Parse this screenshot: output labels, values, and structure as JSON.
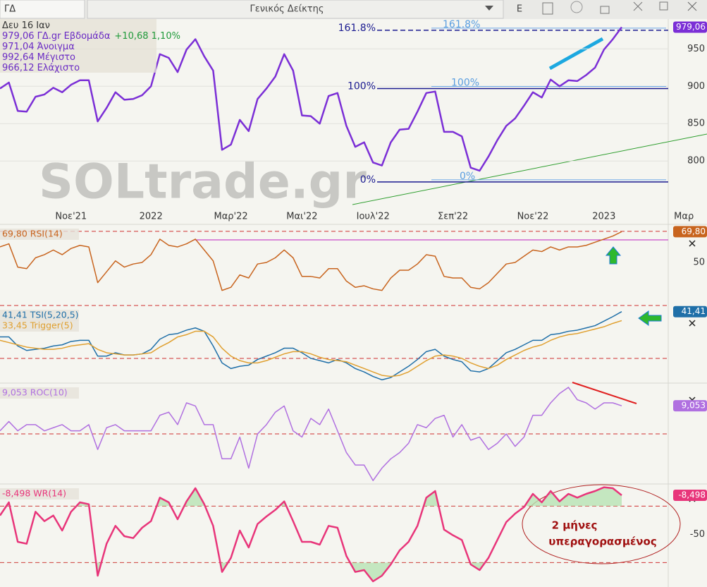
{
  "toolbar": {
    "symbol": "ΓΔ",
    "name": "Γενικός Δείκτης",
    "button": "E"
  },
  "chart_data": [
    {
      "type": "line",
      "info": [
        [
          {
            "text": "Δευ 16 Ιαν",
            "color": "#333333"
          }
        ],
        [
          {
            "text": "979,06 ΓΔ.gr Εβδομάδα",
            "color": "#6a2bc4"
          },
          {
            "text": "+10,68 1,10%",
            "color": "#1f9a3a"
          }
        ],
        [
          {
            "text": "971,04 Άνοιγμα",
            "color": "#6a2bc4"
          }
        ],
        [
          {
            "text": "992,64 Μέγιστο",
            "color": "#6a2bc4"
          }
        ],
        [
          {
            "text": "966,12 Ελάχιστο",
            "color": "#6a2bc4"
          }
        ]
      ],
      "watermark": "SOLtrade.gr",
      "categories": [
        null,
        null,
        null,
        null,
        null,
        null,
        null,
        null,
        "Νοε'21",
        null,
        null,
        null,
        null,
        null,
        null,
        null,
        null,
        "2022",
        null,
        null,
        null,
        null,
        null,
        null,
        null,
        null,
        "Μαρ'22",
        null,
        null,
        null,
        null,
        null,
        null,
        null,
        "Μαι'22",
        null,
        null,
        null,
        null,
        null,
        null,
        null,
        "Ιουλ'22",
        null,
        null,
        null,
        null,
        null,
        null,
        null,
        null,
        "Σεπ'22",
        null,
        null,
        null,
        null,
        null,
        null,
        null,
        null,
        "Νοε'22",
        null,
        null,
        null,
        null,
        null,
        null,
        null,
        "2023",
        null,
        null,
        null,
        null,
        null,
        null,
        null,
        null,
        "Μαρ"
      ],
      "values": [
        897,
        905,
        867,
        866,
        886,
        889,
        898,
        892,
        902,
        908,
        908,
        853,
        871,
        892,
        882,
        883,
        888,
        900,
        943,
        938,
        919,
        949,
        963,
        940,
        921,
        815,
        822,
        855,
        840,
        883,
        897,
        913,
        943,
        921,
        861,
        860,
        850,
        887,
        891,
        847,
        819,
        825,
        798,
        794,
        825,
        842,
        843,
        866,
        891,
        893,
        839,
        839,
        833,
        791,
        787,
        806,
        828,
        847,
        857,
        874,
        892,
        885,
        909,
        900,
        908,
        907,
        915,
        925,
        949,
        963,
        979.06,
        null,
        null,
        null,
        null,
        null,
        null,
        null
      ],
      "value_label": "979,06",
      "color": "#7b2fd6",
      "levels": [
        {
          "value": 975,
          "label": "161.8%"
        },
        {
          "value": 897,
          "label": "100%"
        },
        {
          "value": 772,
          "label": "0%"
        }
      ],
      "ylim": [
        736,
        989
      ],
      "yticks": [
        800,
        850,
        900,
        950
      ],
      "grid": true
    },
    {
      "type": "line",
      "series": [
        {
          "name": "69,80 RSI(14)",
          "color": "#c8641e",
          "value_label": "69,80",
          "values": [
            60,
            62,
            47,
            46,
            53,
            55,
            58,
            55,
            59,
            61,
            60,
            37,
            44,
            51,
            47,
            49,
            50,
            55,
            65,
            61,
            60,
            62,
            65,
            58,
            51,
            32,
            34,
            42,
            40,
            49,
            50,
            53,
            58,
            53,
            41,
            41,
            40,
            46,
            46,
            38,
            34,
            35,
            33,
            32,
            40,
            45,
            45,
            49,
            55,
            54,
            41,
            40,
            40,
            34,
            33,
            37,
            43,
            49,
            50,
            54,
            58,
            57,
            60,
            58,
            60,
            60,
            61,
            63,
            65,
            67,
            69.8
          ]
        }
      ],
      "ylim": [
        22.3,
        73.6
      ],
      "yticks": [
        50
      ],
      "hlines": [
        70
      ]
    },
    {
      "type": "line",
      "series": [
        {
          "name": "41,41 TSI(5,20,5)",
          "color": "#1f6fa8",
          "value_label": "41,41",
          "values": [
            19,
            19,
            11,
            7,
            8,
            9,
            11,
            12,
            15,
            16,
            16,
            2,
            2,
            5,
            3,
            3,
            4,
            8,
            17,
            21,
            22,
            25,
            27,
            24,
            11,
            -4,
            -9,
            -7,
            -6,
            -1,
            2,
            5,
            9,
            9,
            5,
            0,
            -2,
            -4,
            -1,
            -4,
            -9,
            -12,
            -16,
            -19,
            -17,
            -12,
            -7,
            -1,
            6,
            8,
            2,
            -1,
            -3,
            -11,
            -12,
            -9,
            -2,
            5,
            8,
            12,
            16,
            16,
            21,
            22,
            24,
            25,
            27,
            29,
            33,
            37,
            41.41
          ]
        },
        {
          "name": "33,45 Trigger(5)",
          "color": "#e0a030",
          "values": [
            16,
            14,
            12,
            10,
            9,
            8,
            8,
            9,
            11,
            12,
            13,
            8,
            5,
            4,
            3,
            3,
            4,
            5,
            10,
            14,
            19,
            21,
            24,
            24,
            19,
            9,
            2,
            -2,
            -4,
            -4,
            -2,
            1,
            4,
            6,
            6,
            4,
            1,
            -1,
            -2,
            -3,
            -6,
            -9,
            -12,
            -15,
            -16,
            -15,
            -12,
            -7,
            -2,
            2,
            3,
            2,
            0,
            -4,
            -7,
            -9,
            -6,
            -1,
            3,
            7,
            10,
            12,
            16,
            19,
            21,
            22,
            24,
            26,
            28,
            31,
            33.45
          ]
        }
      ],
      "ylim": [
        -21.9,
        45.6
      ],
      "hlines": [
        0
      ]
    },
    {
      "type": "line",
      "series": [
        {
          "name": "9,053 ROC(10)",
          "color": "#b070e0",
          "value_label": "9,053",
          "values": [
            1,
            4,
            1,
            3,
            3,
            1,
            2,
            3,
            1,
            1,
            3,
            -5,
            2,
            3,
            1,
            1,
            1,
            1,
            6,
            7,
            3,
            10,
            9,
            3,
            3,
            -8,
            -8,
            -1,
            -11,
            0,
            3,
            7,
            9,
            1,
            -1,
            5,
            3,
            8,
            1,
            -6,
            -10,
            -10,
            -15,
            -11,
            -8,
            -6,
            -3,
            3,
            2,
            5,
            6,
            -1,
            3,
            -2,
            -1,
            -5,
            -3,
            0,
            -4,
            -1,
            6,
            6,
            10,
            13,
            15,
            11,
            10,
            8,
            10,
            10,
            9.053
          ]
        }
      ],
      "ylim": [
        -16.1,
        15.9
      ],
      "hlines": [
        0
      ]
    },
    {
      "type": "line",
      "series": [
        {
          "name": "-8,498 WR(14)",
          "color": "#e8357a",
          "value_label": "-8,498",
          "values": [
            -30,
            -16,
            -58,
            -60,
            -26,
            -36,
            -30,
            -46,
            -26,
            -16,
            -18,
            -94,
            -60,
            -41,
            -52,
            -54,
            -43,
            -36,
            -11,
            -16,
            -34,
            -15,
            -1,
            -18,
            -41,
            -90,
            -75,
            -46,
            -64,
            -39,
            -31,
            -24,
            -15,
            -36,
            -58,
            -58,
            -61,
            -41,
            -43,
            -73,
            -90,
            -88,
            -100,
            -94,
            -82,
            -67,
            -58,
            -41,
            -11,
            -4,
            -45,
            -51,
            -56,
            -82,
            -88,
            -75,
            -56,
            -37,
            -28,
            -21,
            -7,
            -16,
            -4,
            -15,
            -7,
            -11,
            -7,
            -4,
            0,
            -1,
            -8.498
          ]
        }
      ],
      "ylim": [
        -106,
        2
      ],
      "yticks": [
        -50
      ],
      "hlines": [
        -20,
        -80
      ],
      "fill": "#b8e4b4",
      "annotation": [
        "2 μήνες",
        "υπεραγορασμένος"
      ]
    }
  ]
}
